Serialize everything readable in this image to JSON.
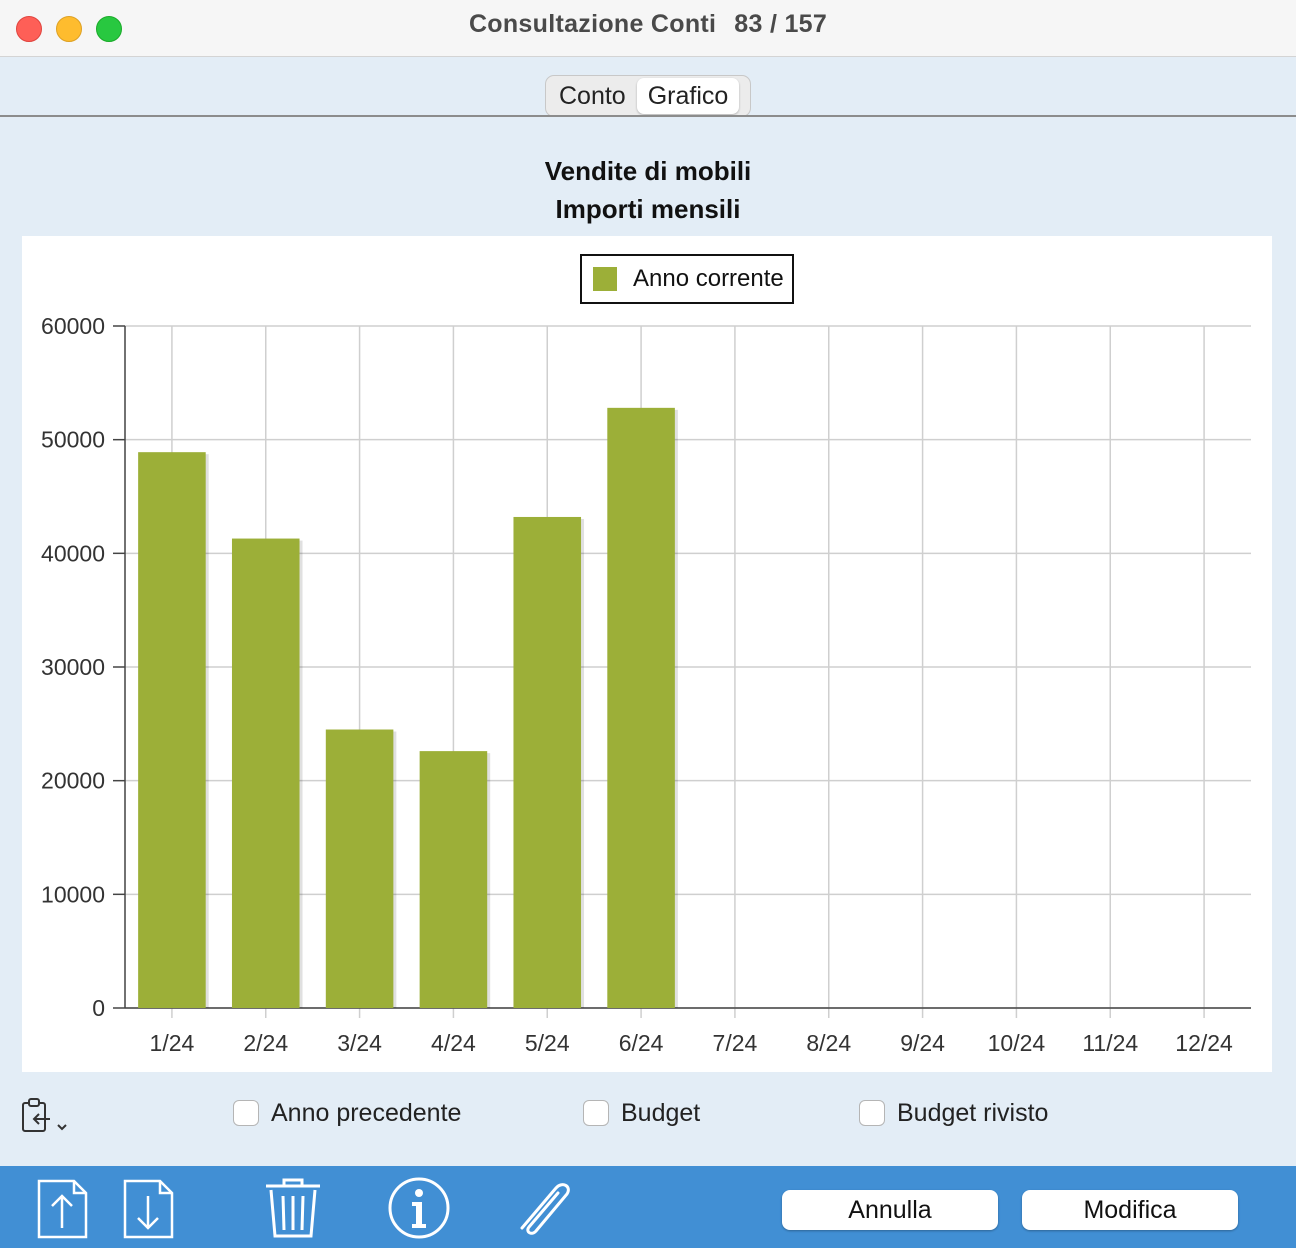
{
  "window": {
    "title": "Consultazione Conti",
    "counter": "83 / 157"
  },
  "tabs": [
    {
      "label": "Conto",
      "active": false
    },
    {
      "label": "Grafico",
      "active": true
    }
  ],
  "chart_data": {
    "type": "bar",
    "title": "Vendite di mobili",
    "subtitle": "Importi mensili",
    "categories": [
      "1/24",
      "2/24",
      "3/24",
      "4/24",
      "5/24",
      "6/24",
      "7/24",
      "8/24",
      "9/24",
      "10/24",
      "11/24",
      "12/24"
    ],
    "series": [
      {
        "name": "Anno corrente",
        "color": "#9caf38",
        "values": [
          48900,
          41300,
          24500,
          22600,
          43200,
          52800,
          null,
          null,
          null,
          null,
          null,
          null
        ]
      }
    ],
    "yticks": [
      0,
      10000,
      20000,
      30000,
      40000,
      50000,
      60000
    ],
    "ylim": [
      0,
      60000
    ],
    "grid": true,
    "legend_position": "top-center"
  },
  "options": {
    "clipboard_icon": "clipboard-arrow-icon",
    "checkboxes": [
      {
        "label": "Anno precedente",
        "checked": false
      },
      {
        "label": "Budget",
        "checked": false
      },
      {
        "label": "Budget rivisto",
        "checked": false
      }
    ]
  },
  "toolbar": {
    "icons": [
      "export-up-icon",
      "import-down-icon",
      "trash-icon",
      "info-icon",
      "paperclip-icon"
    ],
    "cancel_label": "Annulla",
    "edit_label": "Modifica"
  }
}
